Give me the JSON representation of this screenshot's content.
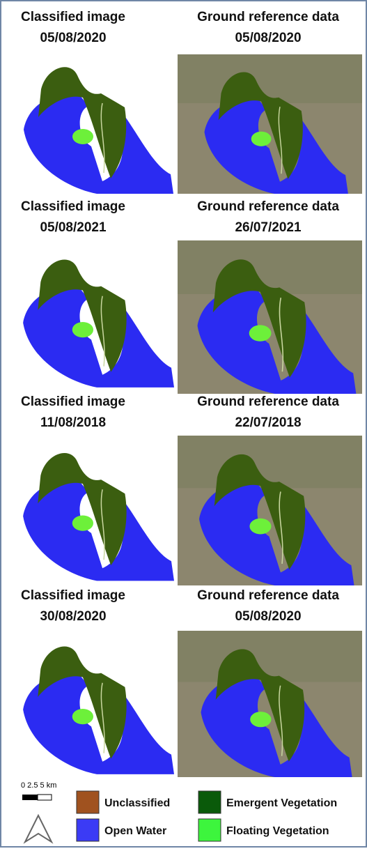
{
  "panels": [
    {
      "left": [
        "Classified image",
        "05/08/2020"
      ],
      "right": [
        "Ground reference data",
        "05/08/2020"
      ]
    },
    {
      "left": [
        "Classified image",
        "05/08/2021"
      ],
      "right": [
        "Ground reference data",
        "26/07/2021"
      ]
    },
    {
      "left": [
        "Classified image",
        "11/08/2018"
      ],
      "right": [
        "Ground reference data",
        "22/07/2018"
      ]
    },
    {
      "left": [
        "Classified image",
        "30/08/2020"
      ],
      "right": [
        "Ground reference data",
        "05/08/2020"
      ]
    }
  ],
  "scale": "0  2.5  5 km",
  "legend": [
    "Unclassified",
    "Open Water",
    "Emergent Vegetation",
    "Floating Vegetation"
  ]
}
